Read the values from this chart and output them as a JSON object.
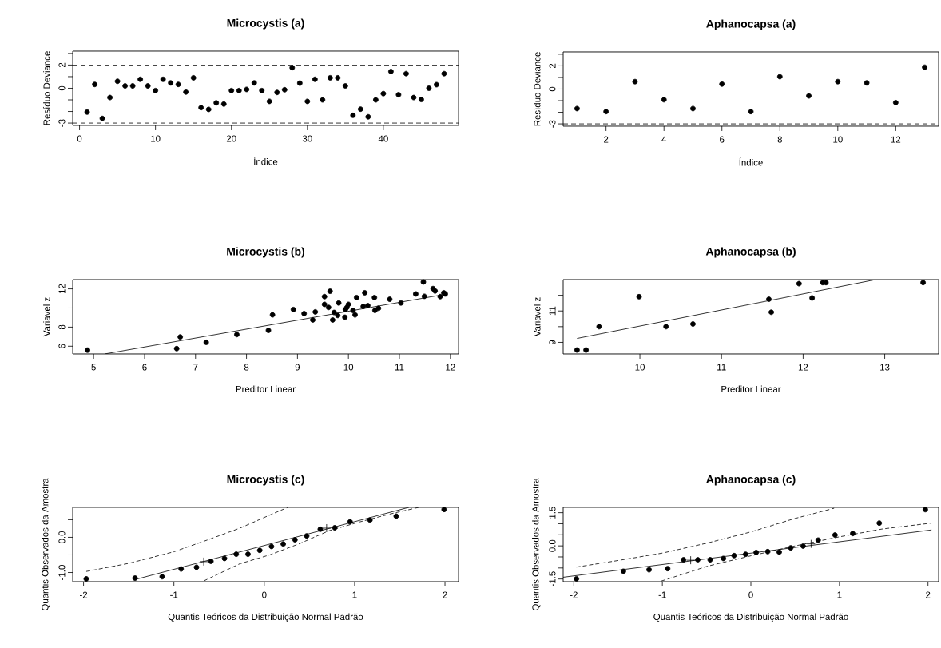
{
  "chart_data": [
    {
      "type": "scatter",
      "title": "Microcystis (a)",
      "xlabel": "Índice",
      "ylabel": "Resíduo Deviance",
      "xlim": [
        -0.9,
        49.9
      ],
      "ylim": [
        -3.2,
        3.2
      ],
      "xticks": [
        0,
        10,
        20,
        30,
        40
      ],
      "yticks": [
        -3,
        {
          "value": -2,
          "label": null
        },
        {
          "value": -1,
          "label": null
        },
        0,
        {
          "value": 1,
          "label": null
        },
        2,
        {
          "value": 3,
          "label": null
        }
      ],
      "ref_lines": [
        {
          "axis": "y",
          "value": 2,
          "line_style": "dashed"
        },
        {
          "axis": "y",
          "value": -3,
          "line_style": "dashed"
        }
      ],
      "series": [
        {
          "type": "scatter",
          "marker": "circle",
          "color": "#000000",
          "x": [
            1,
            2,
            3,
            4,
            5,
            6,
            7,
            8,
            9,
            10,
            11,
            12,
            13,
            14,
            15,
            16,
            17,
            18,
            19,
            20,
            21,
            22,
            23,
            24,
            25,
            26,
            27,
            28,
            29,
            30,
            31,
            32,
            33,
            34,
            35,
            36,
            37,
            38,
            39,
            40,
            41,
            42,
            43,
            44,
            45,
            46,
            47,
            48
          ],
          "values": [
            -2.05,
            0.33,
            -2.6,
            -0.8,
            0.6,
            0.2,
            0.2,
            0.77,
            0.2,
            -0.2,
            0.77,
            0.46,
            0.33,
            -0.33,
            0.9,
            -1.67,
            -1.82,
            -1.26,
            -1.36,
            -0.2,
            -0.2,
            -0.1,
            0.46,
            -0.2,
            -1.13,
            -0.36,
            -0.13,
            1.77,
            0.44,
            -1.13,
            0.77,
            -1.0,
            0.9,
            0.9,
            0.2,
            -2.33,
            -1.8,
            -2.46,
            -1.0,
            -0.46,
            1.44,
            -0.56,
            1.26,
            -0.8,
            -0.97,
            0,
            0.31,
            1.26
          ]
        }
      ]
    },
    {
      "type": "scatter",
      "title": "Aphanocapsa (a)",
      "xlabel": "Índice",
      "ylabel": "Resíduo Deviance",
      "xlim": [
        0.52,
        13.48
      ],
      "ylim": [
        -3.2,
        3.2
      ],
      "xticks": [
        2,
        4,
        6,
        8,
        10,
        12
      ],
      "yticks": [
        -3,
        {
          "value": -2,
          "label": null
        },
        {
          "value": -1,
          "label": null
        },
        0,
        {
          "value": 1,
          "label": null
        },
        2,
        {
          "value": 3,
          "label": null
        }
      ],
      "ref_lines": [
        {
          "axis": "y",
          "value": 2,
          "line_style": "dashed"
        },
        {
          "axis": "y",
          "value": -3,
          "line_style": "dashed"
        }
      ],
      "series": [
        {
          "type": "scatter",
          "marker": "circle",
          "color": "#000000",
          "x": [
            1,
            2,
            3,
            4,
            5,
            6,
            7,
            8,
            9,
            10,
            11,
            12,
            13
          ],
          "values": [
            -1.68,
            -1.94,
            0.64,
            -0.92,
            -1.68,
            0.43,
            -1.94,
            1.07,
            -0.59,
            0.64,
            0.53,
            -1.17,
            1.88
          ]
        }
      ]
    },
    {
      "type": "scatter",
      "title": "Microcystis (b)",
      "xlabel": "Preditor Linear",
      "ylabel": "Variavel z",
      "xlim": [
        4.59,
        12.16
      ],
      "ylim": [
        5.19,
        12.97
      ],
      "xticks": [
        5,
        6,
        7,
        8,
        9,
        10,
        11,
        12
      ],
      "yticks": [
        6,
        8,
        {
          "value": 10,
          "label": null
        },
        12
      ],
      "series": [
        {
          "type": "scatter",
          "marker": "circle",
          "color": "#000000",
          "x": [
            4.88,
            6.63,
            6.7,
            7.21,
            7.81,
            8.43,
            8.51,
            8.92,
            9.13,
            9.3,
            9.35,
            9.53,
            9.53,
            9.64,
            9.61,
            9.69,
            9.72,
            9.81,
            9.79,
            9.93,
            9.94,
            10.0,
            9.97,
            10.09,
            10.13,
            10.16,
            10.29,
            10.32,
            10.38,
            10.51,
            10.52,
            10.59,
            10.81,
            11.03,
            11.32,
            11.47,
            11.49,
            11.66,
            11.7,
            11.8,
            11.9,
            11.87
          ],
          "values": [
            5.59,
            5.75,
            6.97,
            6.41,
            7.22,
            7.66,
            9.28,
            9.84,
            9.41,
            8.75,
            9.59,
            11.19,
            10.38,
            11.75,
            10.06,
            8.75,
            9.53,
            10.53,
            9.22,
            9.03,
            9.84,
            10.38,
            10.06,
            9.75,
            9.28,
            11.09,
            10.16,
            11.59,
            10.25,
            11.09,
            9.75,
            9.97,
            10.91,
            10.53,
            11.47,
            12.72,
            11.22,
            12.03,
            11.78,
            11.19,
            11.47,
            11.59
          ]
        },
        {
          "type": "line",
          "line_style": "solid",
          "color": "#000000",
          "x": [
            5.22,
            11.94
          ],
          "values": [
            5.19,
            11.47
          ]
        }
      ]
    },
    {
      "type": "scatter",
      "title": "Aphanocapsa (b)",
      "xlabel": "Preditor Linear",
      "ylabel": "Variavel z",
      "xlim": [
        9.06,
        13.66
      ],
      "ylim": [
        8.26,
        13.0
      ],
      "xticks": [
        10,
        11,
        12,
        13
      ],
      "yticks": [
        9,
        {
          "value": 10,
          "label": null
        },
        11,
        {
          "value": 12,
          "label": null
        }
      ],
      "series": [
        {
          "type": "scatter",
          "marker": "circle",
          "color": "#000000",
          "x": [
            9.23,
            9.34,
            9.5,
            9.99,
            10.32,
            10.65,
            11.58,
            11.61,
            11.95,
            12.11,
            12.24,
            12.28,
            13.47
          ],
          "values": [
            8.51,
            8.51,
            10.0,
            11.91,
            10.0,
            10.17,
            11.75,
            10.92,
            12.74,
            11.83,
            12.81,
            12.81,
            12.81
          ]
        },
        {
          "type": "line",
          "line_style": "solid",
          "color": "#000000",
          "x": [
            9.23,
            12.87
          ],
          "values": [
            9.25,
            12.98
          ]
        }
      ]
    },
    {
      "type": "scatter",
      "title": "Microcystis (c)",
      "xlabel": "Quantis Teóricos da Distribuição Normal Padrão",
      "ylabel": "Quantis Observados da Amostra",
      "xlim": [
        -2.12,
        2.15
      ],
      "ylim": [
        -1.26,
        0.85
      ],
      "xticks": [
        -2,
        -1,
        0,
        1,
        2
      ],
      "yticks": [
        {
          "value": -1,
          "label": "-1.0"
        },
        {
          "value": -0.5,
          "label": null
        },
        {
          "value": 0,
          "label": "0.0"
        },
        {
          "value": 0.5,
          "label": null
        }
      ],
      "series": [
        {
          "type": "scatter",
          "marker": "circle",
          "color": "#000000",
          "x": [
            -1.97,
            -1.43,
            -1.13,
            -0.92,
            -0.75,
            -0.59,
            -0.44,
            -0.31,
            -0.18,
            -0.05,
            0.08,
            0.21,
            0.34,
            0.47,
            0.62,
            0.78,
            0.95,
            1.17,
            1.46,
            1.99
          ],
          "values": [
            -1.18,
            -1.16,
            -1.12,
            -0.9,
            -0.85,
            -0.68,
            -0.6,
            -0.48,
            -0.48,
            -0.37,
            -0.26,
            -0.19,
            -0.07,
            0.04,
            0.23,
            0.27,
            0.44,
            0.49,
            0.6,
            0.79
          ]
        },
        {
          "type": "scatter",
          "marker": "cross",
          "color": "#000000",
          "x": [
            -0.67,
            0.69
          ],
          "values": [
            -0.69,
            0.26
          ]
        },
        {
          "type": "line",
          "line_style": "solid",
          "color": "#000000",
          "x": [
            -1.43,
            1.6
          ],
          "values": [
            -1.2,
            0.85
          ]
        },
        {
          "type": "line",
          "line_style": "dashed",
          "color": "#000000",
          "x": [
            -1.97,
            -1.5,
            -1.0,
            -0.6,
            -0.27,
            0.06,
            0.26
          ],
          "values": [
            -0.97,
            -0.74,
            -0.41,
            -0.05,
            0.26,
            0.63,
            0.85
          ]
        },
        {
          "type": "line",
          "line_style": "dashed",
          "color": "#000000",
          "x": [
            -0.67,
            -0.27,
            0.06,
            0.39,
            0.72,
            1.06,
            1.39,
            1.71
          ],
          "values": [
            -1.24,
            -0.75,
            -0.5,
            -0.18,
            0.19,
            0.44,
            0.66,
            0.85
          ]
        }
      ]
    },
    {
      "type": "scatter",
      "title": "Aphanocapsa (c)",
      "xlabel": "Quantis Teóricos da Distribuição Normal Padrão",
      "ylabel": "Quantis Observados da Amostra",
      "xlim": [
        -2.12,
        2.12
      ],
      "ylim": [
        -1.62,
        1.74
      ],
      "xticks": [
        -2,
        -1,
        0,
        1,
        2
      ],
      "yticks": [
        {
          "value": -1.5,
          "label": "-1.5"
        },
        {
          "value": -1,
          "label": null
        },
        {
          "value": -0.5,
          "label": null
        },
        {
          "value": 0,
          "label": "0.0"
        },
        {
          "value": 0.5,
          "label": null
        },
        {
          "value": 1,
          "label": null
        },
        {
          "value": 1.5,
          "label": "1.5"
        }
      ],
      "series": [
        {
          "type": "scatter",
          "marker": "circle",
          "color": "#000000",
          "x": [
            -1.97,
            -1.44,
            -1.15,
            -0.94,
            -0.76,
            -0.6,
            -0.46,
            -0.31,
            -0.19,
            -0.06,
            0.06,
            0.19,
            0.32,
            0.45,
            0.59,
            0.76,
            0.95,
            1.15,
            1.45,
            1.97
          ],
          "values": [
            -1.49,
            -1.15,
            -1.08,
            -1.03,
            -0.63,
            -0.63,
            -0.63,
            -0.57,
            -0.44,
            -0.38,
            -0.3,
            -0.26,
            -0.28,
            -0.09,
            -0.01,
            0.26,
            0.49,
            0.56,
            1.03,
            1.64
          ]
        },
        {
          "type": "scatter",
          "marker": "cross",
          "color": "#000000",
          "x": [
            -0.68,
            0.68
          ],
          "values": [
            -0.65,
            0.09
          ]
        },
        {
          "type": "line",
          "line_style": "solid",
          "color": "#000000",
          "x": [
            -2.12,
            2.04
          ],
          "values": [
            -1.42,
            0.72
          ]
        },
        {
          "type": "line",
          "line_style": "dashed",
          "color": "#000000",
          "x": [
            -1.97,
            -1.48,
            -0.99,
            -0.49,
            0,
            0.49,
            0.94
          ],
          "values": [
            -0.96,
            -0.65,
            -0.32,
            0.13,
            0.63,
            1.23,
            1.7
          ]
        },
        {
          "type": "line",
          "line_style": "dashed",
          "color": "#000000",
          "x": [
            -1.01,
            -0.49,
            0,
            0.49,
            0.99,
            1.48,
            2.04
          ],
          "values": [
            -1.59,
            -0.92,
            -0.45,
            -0.01,
            0.4,
            0.76,
            1.03
          ]
        }
      ]
    }
  ]
}
